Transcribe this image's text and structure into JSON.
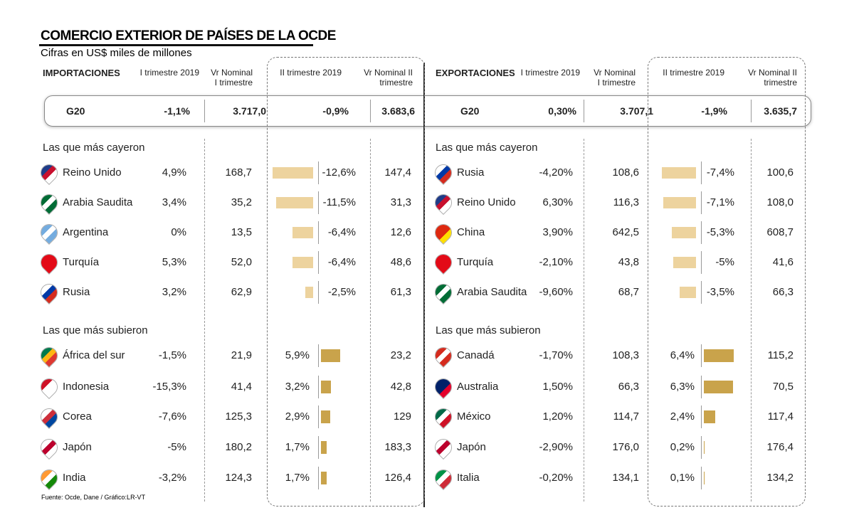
{
  "header": {
    "title": "COMERCIO EXTERIOR DE PAÍSES DE LA OCDE",
    "subtitle": "Cifras en US$ miles de millones"
  },
  "panels": [
    {
      "label": "IMPORTACIONES",
      "columns": [
        "I trimestre 2019",
        "Vr Nominal I trimestre",
        "II trimestre 2019",
        "Vr Nominal II trimestre"
      ],
      "g20": {
        "country": "G20",
        "q1_change": "-1,1%",
        "q1_value": "3.717,0",
        "q2_change": "-0,9%",
        "q2_value": "3.683,6"
      },
      "groups": [
        {
          "title": "Las que más cayeron",
          "rows": [
            {
              "country": "Reino Unido",
              "q1_change": "4,9%",
              "q1_value": "168,7",
              "q2_change": {
                "value": -12.6,
                "label": "-12,6%"
              },
              "q2_value": "147,4"
            },
            {
              "country": "Arabia Saudita",
              "q1_change": "3,4%",
              "q1_value": "35,2",
              "q2_change": {
                "value": -11.5,
                "label": "-11,5%"
              },
              "q2_value": "31,3"
            },
            {
              "country": "Argentina",
              "q1_change": "0%",
              "q1_value": "13,5",
              "q2_change": {
                "value": -6.4,
                "label": "-6,4%"
              },
              "q2_value": "12,6"
            },
            {
              "country": "Turquía",
              "q1_change": "5,3%",
              "q1_value": "52,0",
              "q2_change": {
                "value": -6.4,
                "label": "-6,4%"
              },
              "q2_value": "48,6"
            },
            {
              "country": "Rusia",
              "q1_change": "3,2%",
              "q1_value": "62,9",
              "q2_change": {
                "value": -2.5,
                "label": "-2,5%"
              },
              "q2_value": "61,3"
            }
          ]
        },
        {
          "title": "Las que más subieron",
          "rows": [
            {
              "country": "África del sur",
              "q1_change": "-1,5%",
              "q1_value": "21,9",
              "q2_change": {
                "value": 5.9,
                "label": "5,9%"
              },
              "q2_value": "23,2"
            },
            {
              "country": "Indonesia",
              "q1_change": "-15,3%",
              "q1_value": "41,4",
              "q2_change": {
                "value": 3.2,
                "label": "3,2%"
              },
              "q2_value": "42,8"
            },
            {
              "country": "Corea",
              "q1_change": "-7,6%",
              "q1_value": "125,3",
              "q2_change": {
                "value": 2.9,
                "label": "2,9%"
              },
              "q2_value": "129"
            },
            {
              "country": "Japón",
              "q1_change": "-5%",
              "q1_value": "180,2",
              "q2_change": {
                "value": 1.7,
                "label": "1,7%"
              },
              "q2_value": "183,3"
            },
            {
              "country": "India",
              "q1_change": "-3,2%",
              "q1_value": "124,3",
              "q2_change": {
                "value": 1.7,
                "label": "1,7%"
              },
              "q2_value": "126,4"
            }
          ]
        }
      ]
    },
    {
      "label": "EXPORTACIONES",
      "columns": [
        "I trimestre 2019",
        "Vr Nominal I trimestre",
        "II trimestre 2019",
        "Vr Nominal II trimestre"
      ],
      "g20": {
        "country": "G20",
        "q1_change": "0,30%",
        "q1_value": "3.707,1",
        "q2_change": "-1,9%",
        "q2_value": "3.635,7"
      },
      "groups": [
        {
          "title": "Las que más cayeron",
          "rows": [
            {
              "country": "Rusia",
              "q1_change": "-4,20%",
              "q1_value": "108,6",
              "q2_change": {
                "value": -7.4,
                "label": "-7,4%"
              },
              "q2_value": "100,6"
            },
            {
              "country": "Reino Unido",
              "q1_change": "6,30%",
              "q1_value": "116,3",
              "q2_change": {
                "value": -7.1,
                "label": "-7,1%"
              },
              "q2_value": "108,0"
            },
            {
              "country": "China",
              "q1_change": "3,90%",
              "q1_value": "642,5",
              "q2_change": {
                "value": -5.3,
                "label": "-5,3%"
              },
              "q2_value": "608,7"
            },
            {
              "country": "Turquía",
              "q1_change": "-2,10%",
              "q1_value": "43,8",
              "q2_change": {
                "value": -5,
                "label": "-5%"
              },
              "q2_value": "41,6"
            },
            {
              "country": "Arabia Saudita",
              "q1_change": "-9,60%",
              "q1_value": "68,7",
              "q2_change": {
                "value": -3.5,
                "label": "-3,5%"
              },
              "q2_value": "66,3"
            }
          ]
        },
        {
          "title": "Las que más subieron",
          "rows": [
            {
              "country": "Canadá",
              "q1_change": "-1,70%",
              "q1_value": "108,3",
              "q2_change": {
                "value": 6.4,
                "label": "6,4%"
              },
              "q2_value": "115,2"
            },
            {
              "country": "Australia",
              "q1_change": "1,50%",
              "q1_value": "66,3",
              "q2_change": {
                "value": 6.3,
                "label": "6,3%"
              },
              "q2_value": "70,5"
            },
            {
              "country": "México",
              "q1_change": "1,20%",
              "q1_value": "114,7",
              "q2_change": {
                "value": 2.4,
                "label": "2,4%"
              },
              "q2_value": "117,4"
            },
            {
              "country": "Japón",
              "q1_change": "-2,90%",
              "q1_value": "176,0",
              "q2_change": {
                "value": 0.2,
                "label": "0,2%"
              },
              "q2_value": "176,4"
            },
            {
              "country": "Italia",
              "q1_change": "-0,20%",
              "q1_value": "134,1",
              "q2_change": {
                "value": 0.1,
                "label": "0,1%"
              },
              "q2_value": "134,2"
            }
          ]
        }
      ]
    }
  ],
  "source": "Fuente: Ocde, Dane / Gráfico:LR-VT"
}
